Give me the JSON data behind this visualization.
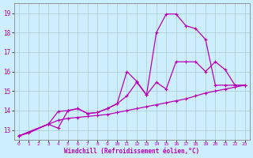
{
  "xlabel": "Windchill (Refroidissement éolien,°C)",
  "bg_color": "#cceeff",
  "grid_color": "#aacccc",
  "line_color": "#bb00bb",
  "xlim": [
    -0.5,
    23.5
  ],
  "ylim": [
    12.5,
    19.5
  ],
  "yticks": [
    13,
    14,
    15,
    16,
    17,
    18,
    19
  ],
  "xticks": [
    0,
    1,
    2,
    3,
    4,
    5,
    6,
    7,
    8,
    9,
    10,
    11,
    12,
    13,
    14,
    15,
    16,
    17,
    18,
    19,
    20,
    21,
    22,
    23
  ],
  "series1_x": [
    0,
    1,
    3,
    4,
    5,
    6,
    7,
    8,
    9,
    10,
    11,
    12,
    13,
    14,
    15,
    16,
    17,
    18,
    19,
    20,
    21,
    22,
    23
  ],
  "series1_y": [
    12.7,
    12.85,
    13.3,
    13.5,
    13.6,
    13.65,
    13.7,
    13.75,
    13.8,
    13.9,
    14.0,
    14.1,
    14.2,
    14.3,
    14.4,
    14.5,
    14.6,
    14.75,
    14.9,
    15.0,
    15.1,
    15.2,
    15.3
  ],
  "series2_x": [
    0,
    3,
    4,
    5,
    6,
    7,
    8,
    9,
    10,
    11,
    12,
    13,
    14,
    15,
    16,
    17,
    18,
    19,
    20,
    21,
    22,
    23
  ],
  "series2_y": [
    12.7,
    13.3,
    13.95,
    14.0,
    14.1,
    13.85,
    13.9,
    14.1,
    14.35,
    16.0,
    15.5,
    14.8,
    15.45,
    15.1,
    16.5,
    16.5,
    16.5,
    16.0,
    16.5,
    16.1,
    15.3,
    15.3
  ],
  "series3_x": [
    0,
    3,
    4,
    5,
    6,
    7,
    8,
    9,
    10,
    11,
    12,
    13,
    14,
    15,
    16,
    17,
    18,
    19,
    20,
    21,
    22,
    23
  ],
  "series3_y": [
    12.7,
    13.3,
    13.1,
    14.0,
    14.1,
    13.85,
    13.9,
    14.1,
    14.35,
    14.75,
    15.45,
    14.8,
    18.0,
    18.95,
    18.95,
    18.35,
    18.2,
    17.65,
    15.3,
    15.3,
    15.3,
    15.3
  ],
  "marker_size": 3,
  "linewidth": 0.9
}
